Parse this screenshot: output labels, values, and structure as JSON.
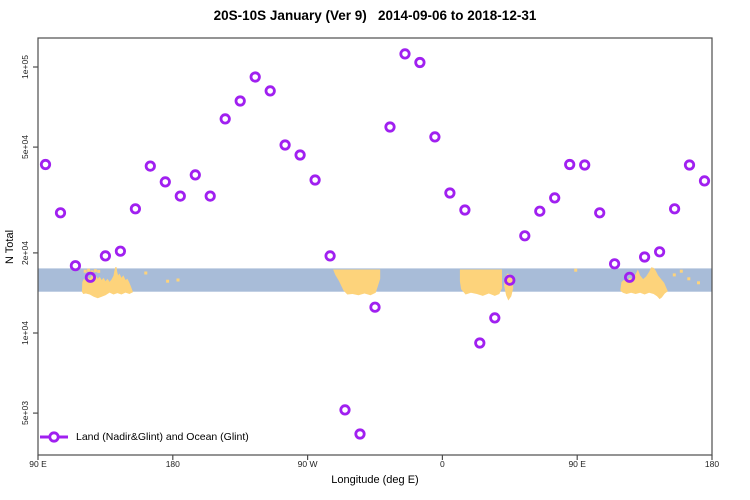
{
  "chart_data": {
    "type": "scatter",
    "title": "20S-10S January (Ver 9)   2014-09-06 to 2018-12-31",
    "xlabel": "Longitude (deg E)",
    "ylabel": "N Total",
    "y_scale": "log",
    "ylim": [
      3500,
      130000
    ],
    "xlim_deg_e": [
      90,
      540
    ],
    "grid": "off",
    "legend_position": "bottom-left",
    "x_axis": {
      "tick_values": [
        90,
        180,
        270,
        360,
        450,
        540
      ],
      "tick_labels": [
        "90 E",
        "180",
        "90 W",
        "0",
        "90 E",
        "180"
      ]
    },
    "y_axis": {
      "tick_values": [
        100000,
        50000,
        20000,
        10000,
        5000
      ],
      "tick_labels": [
        "1e+05",
        "5e+04",
        "2e+04",
        "1e+04",
        "5e+03"
      ]
    },
    "point_color": "#a020f0",
    "legend": {
      "label": "Land (Nadir&Glint) and Ocean (Glint)"
    },
    "points": {
      "lon_deg_e": [
        95,
        105,
        115,
        125,
        135,
        145,
        155,
        165,
        175,
        185,
        195,
        205,
        215,
        225,
        235,
        245,
        255,
        265,
        275,
        285,
        295,
        305,
        315,
        325,
        335,
        345,
        355,
        365,
        375,
        385,
        395,
        405,
        415,
        425,
        435,
        445,
        455,
        465,
        475,
        485,
        495,
        505,
        515,
        525,
        535
      ],
      "n": [
        43000,
        28300,
        17900,
        16200,
        19500,
        20300,
        29300,
        42400,
        37000,
        32700,
        39300,
        32700,
        63800,
        74500,
        91700,
        81300,
        50900,
        46700,
        37600,
        19500,
        5140,
        4170,
        12500,
        59500,
        112000,
        104000,
        54600,
        33600,
        29000,
        9170,
        11400,
        15800,
        23200,
        28700,
        32200,
        43000,
        42800,
        28300,
        18200,
        16200,
        19300,
        20200,
        29300,
        42800,
        37300
      ]
    },
    "map_strip": {
      "ocean_color": "#a8bcd8",
      "land_color": "#fdd37b",
      "n_range": [
        14300,
        17500
      ],
      "land_polygons": [
        {
          "name": "indonesia-australia-wrap-west",
          "points": [
            [
              119.3,
              1.0
            ],
            [
              119.6,
              0.6
            ],
            [
              120.6,
              0.45
            ],
            [
              121.9,
              0.52
            ],
            [
              123.2,
              0.38
            ],
            [
              124.5,
              0.45
            ],
            [
              125.9,
              0.3
            ],
            [
              127.2,
              0.42
            ],
            [
              128.5,
              0.32
            ],
            [
              129.9,
              0.45
            ],
            [
              131.2,
              0.36
            ],
            [
              132.5,
              0.5
            ],
            [
              133.8,
              0.4
            ],
            [
              135.1,
              0.55
            ],
            [
              136.4,
              0.45
            ],
            [
              137.8,
              0.58
            ],
            [
              139.1,
              0.48
            ],
            [
              140.4,
              0.32
            ],
            [
              141.1,
              0.08
            ],
            [
              141.7,
              -0.06
            ],
            [
              142.4,
              -0.06
            ],
            [
              142.9,
              0.15
            ],
            [
              143.5,
              0.3
            ],
            [
              144.4,
              0.22
            ],
            [
              145.7,
              0.4
            ],
            [
              147.0,
              0.3
            ],
            [
              148.4,
              0.5
            ],
            [
              149.7,
              0.45
            ],
            [
              151.0,
              0.62
            ],
            [
              152.3,
              0.82
            ],
            [
              153.4,
              1.02
            ],
            [
              151.0,
              1.1
            ],
            [
              148.4,
              1.04
            ],
            [
              145.7,
              1.12
            ],
            [
              143.0,
              1.06
            ],
            [
              140.4,
              1.12
            ],
            [
              137.8,
              1.04
            ],
            [
              135.1,
              1.15
            ],
            [
              132.5,
              1.22
            ],
            [
              129.9,
              1.28
            ],
            [
              127.2,
              1.22
            ],
            [
              124.5,
              1.12
            ],
            [
              121.9,
              1.08
            ],
            [
              120.2,
              1.1
            ]
          ]
        },
        {
          "name": "south-america",
          "points": [
            [
              287.0,
              0.05
            ],
            [
              318.5,
              0.05
            ],
            [
              318.5,
              0.45
            ],
            [
              317.0,
              0.75
            ],
            [
              315.5,
              1.05
            ],
            [
              312.0,
              1.15
            ],
            [
              308.0,
              1.08
            ],
            [
              304.0,
              1.15
            ],
            [
              300.0,
              1.1
            ],
            [
              296.5,
              1.12
            ],
            [
              294.0,
              0.95
            ],
            [
              291.0,
              0.55
            ],
            [
              288.5,
              0.28
            ]
          ]
        },
        {
          "name": "africa",
          "points": [
            [
              371.7,
              0.05
            ],
            [
              399.8,
              0.05
            ],
            [
              399.8,
              0.85
            ],
            [
              398.0,
              1.1
            ],
            [
              395.0,
              1.18
            ],
            [
              391.0,
              1.08
            ],
            [
              387.0,
              1.18
            ],
            [
              383.0,
              1.1
            ],
            [
              379.0,
              1.05
            ],
            [
              375.5,
              1.12
            ],
            [
              372.5,
              0.9
            ],
            [
              371.7,
              0.55
            ]
          ]
        },
        {
          "name": "madagascar",
          "points": [
            [
              401.5,
              0.4
            ],
            [
              403.5,
              0.22
            ],
            [
              405.5,
              0.28
            ],
            [
              407.0,
              0.5
            ],
            [
              407.3,
              0.85
            ],
            [
              406.0,
              1.2
            ],
            [
              404.0,
              1.38
            ],
            [
              402.5,
              1.15
            ],
            [
              401.2,
              0.75
            ]
          ]
        },
        {
          "name": "australia",
          "points": [
            [
              478.8,
              0.95
            ],
            [
              479.5,
              0.6
            ],
            [
              481.0,
              0.5
            ],
            [
              483.0,
              0.56
            ],
            [
              485.0,
              0.4
            ],
            [
              487.0,
              0.46
            ],
            [
              489.0,
              0.25
            ],
            [
              490.5,
              0.05
            ],
            [
              492.0,
              0.3
            ],
            [
              494.0,
              0.46
            ],
            [
              496.0,
              0.35
            ],
            [
              498.0,
              0.15
            ],
            [
              499.5,
              -0.05
            ],
            [
              501.0,
              -0.02
            ],
            [
              502.5,
              0.1
            ],
            [
              504.0,
              0.3
            ],
            [
              506.0,
              0.46
            ],
            [
              508.0,
              0.62
            ],
            [
              510.5,
              0.98
            ],
            [
              508.5,
              1.08
            ],
            [
              506.5,
              1.25
            ],
            [
              505.0,
              1.32
            ],
            [
              503.3,
              1.2
            ],
            [
              501.0,
              1.1
            ],
            [
              498.0,
              1.05
            ],
            [
              495.0,
              1.12
            ],
            [
              492.0,
              1.05
            ],
            [
              489.0,
              1.1
            ],
            [
              486.0,
              1.05
            ],
            [
              483.0,
              1.1
            ],
            [
              480.5,
              1.05
            ]
          ]
        }
      ],
      "island_dots": [
        [
          121.5,
          0.12
        ],
        [
          123.8,
          0.08
        ],
        [
          126.0,
          0.15
        ],
        [
          128.3,
          0.1
        ],
        [
          130.5,
          0.13
        ],
        [
          162.0,
          0.2
        ],
        [
          176.5,
          0.55
        ],
        [
          183.5,
          0.5
        ],
        [
          449.0,
          0.08
        ],
        [
          514.8,
          0.28
        ],
        [
          519.5,
          0.12
        ],
        [
          524.5,
          0.45
        ],
        [
          531.0,
          0.62
        ]
      ]
    }
  }
}
